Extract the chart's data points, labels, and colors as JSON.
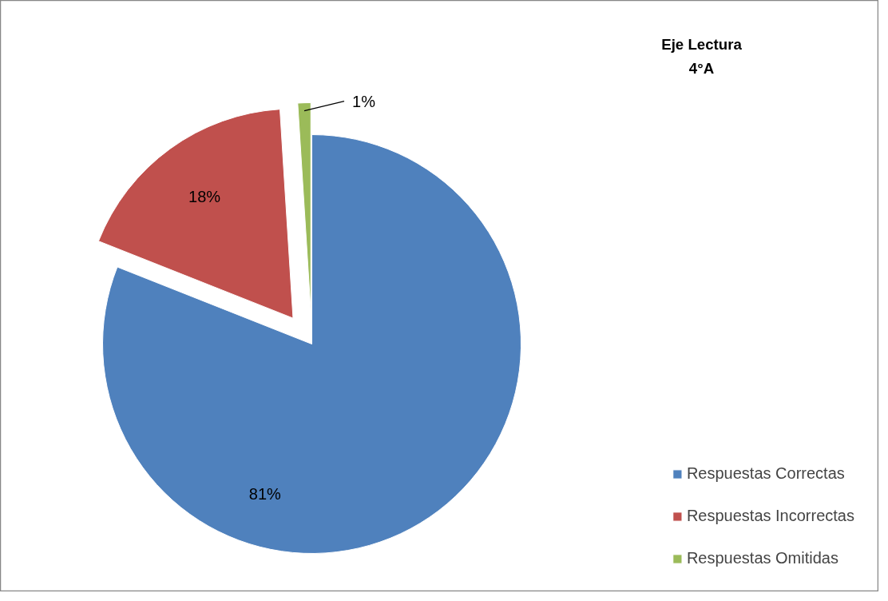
{
  "chart_data": {
    "type": "pie",
    "title": "Eje Lectura\n4°A",
    "categories": [
      "Respuestas Correctas",
      "Respuestas Incorrectas",
      "Respuestas Omitidas"
    ],
    "values": [
      81,
      18,
      1
    ],
    "colors": [
      "#4f81bd",
      "#c0504d",
      "#9bbb59"
    ],
    "value_labels": [
      "81%",
      "18%",
      "1%"
    ],
    "legend": "bottom right"
  }
}
